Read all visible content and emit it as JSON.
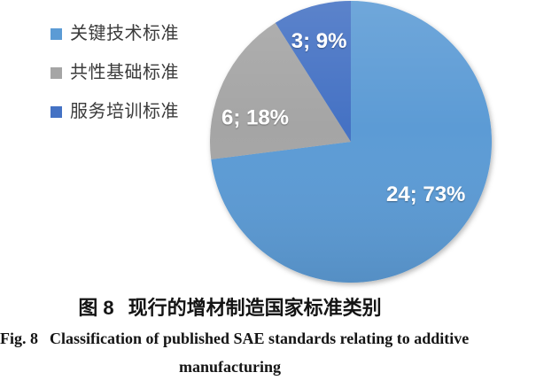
{
  "legend": {
    "items": [
      {
        "label": "关键技术标准",
        "color": "#5B9BD5"
      },
      {
        "label": "共性基础标准",
        "color": "#A5A5A5"
      },
      {
        "label": "服务培训标准",
        "color": "#4472C4"
      }
    ]
  },
  "chart_data": {
    "type": "pie",
    "categories": [
      "关键技术标准",
      "共性基础标准",
      "服务培训标准"
    ],
    "values": [
      24,
      6,
      3
    ],
    "percents": [
      73,
      18,
      9
    ],
    "slices": [
      {
        "label": "关键技术标准",
        "value": 24,
        "percent": 73,
        "display": "24; 73%",
        "color": "#5B9BD5",
        "label_angle_deg": 125,
        "label_radius_frac": 0.65
      },
      {
        "label": "共性基础标准",
        "value": 6,
        "percent": 18,
        "display": "6; 18%",
        "color": "#A5A5A5",
        "label_angle_deg": 284,
        "label_radius_frac": 0.7
      },
      {
        "label": "服务培训标准",
        "value": 3,
        "percent": 9,
        "display": "3; 9%",
        "color": "#4472C4",
        "label_angle_deg": 342.5,
        "label_radius_frac": 0.75
      }
    ],
    "start_angle_deg": 0,
    "direction": "clockwise",
    "legend_position": "left",
    "data_label_color": "#FFFFFF",
    "title": "图 8 现行的增材制造国家标准类别"
  },
  "caption": {
    "zh_prefix": "图 8",
    "zh_title": "现行的增材制造国家标准类别",
    "en_prefix": "Fig. 8",
    "en_line1": "Classification of published SAE standards relating to additive",
    "en_line2": "manufacturing"
  }
}
